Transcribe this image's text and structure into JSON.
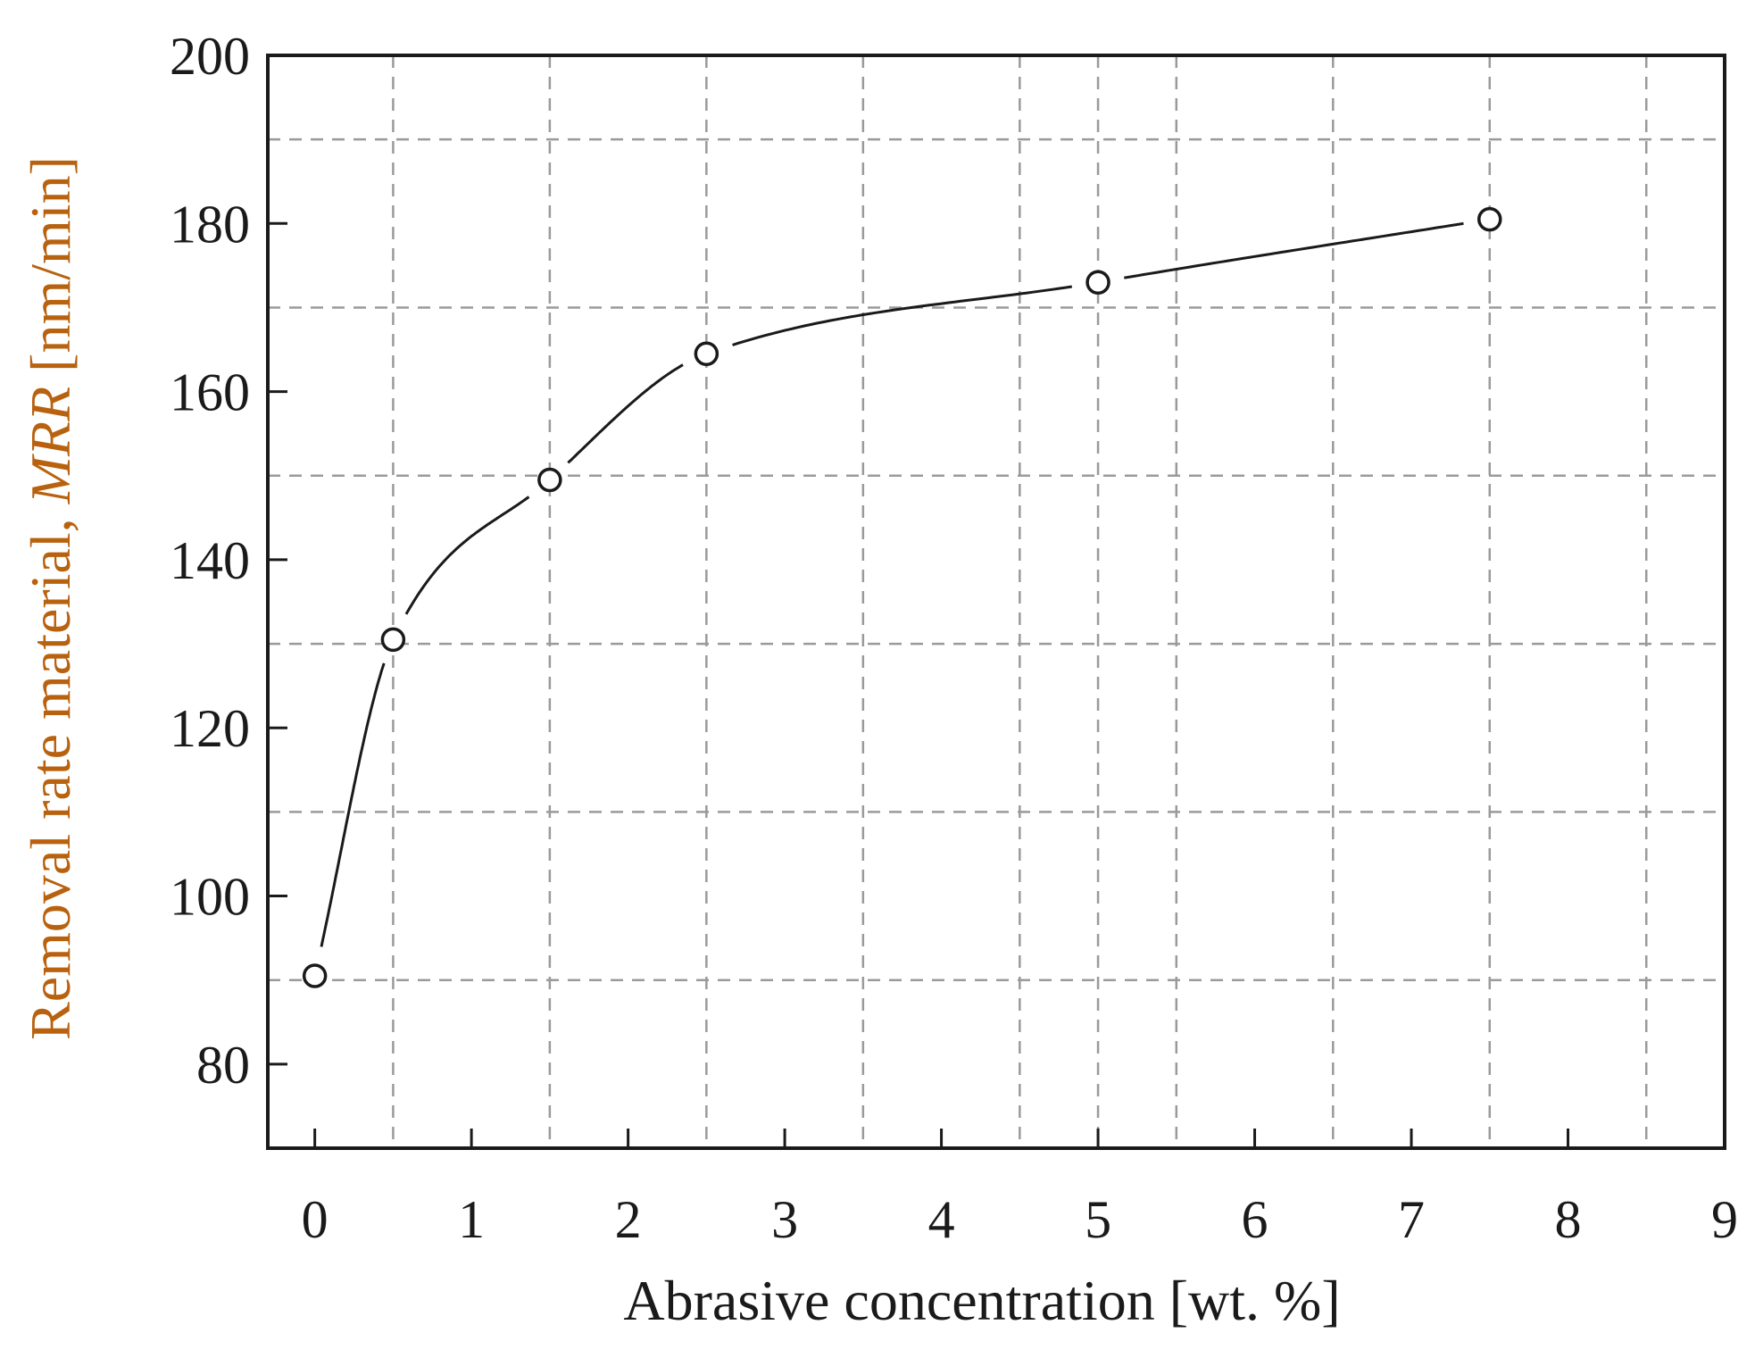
{
  "chart_data": {
    "type": "line",
    "xlabel": "Abrasive concentration [wt. %]",
    "ylabel_parts": {
      "prefix": "Removal rate material, ",
      "italic": "MRR",
      "suffix": " [nm/min]"
    },
    "xlim": [
      -0.3,
      9
    ],
    "ylim": [
      70,
      200
    ],
    "x_ticks": [
      0,
      1,
      2,
      3,
      4,
      5,
      6,
      7,
      8,
      9
    ],
    "y_ticks": [
      80,
      100,
      120,
      140,
      160,
      180,
      200
    ],
    "x_grid": [
      0.5,
      1.5,
      2.5,
      3.5,
      4.5,
      5,
      5.5,
      6.5,
      7.5,
      8.5
    ],
    "y_grid": [
      90,
      110,
      130,
      150,
      170,
      190
    ],
    "series": [
      {
        "x": [
          0,
          0.5,
          1.5,
          2.5,
          5,
          7.5
        ],
        "y": [
          90.5,
          130.5,
          149.5,
          164.5,
          173,
          180.5
        ],
        "marker": "open-circle",
        "line": "smooth-curve"
      }
    ],
    "grid": true,
    "colors": {
      "axis": "#1a1a1a",
      "grid": "#9a9a9a",
      "ylabel": "#b8620f",
      "xlabel": "#1a1a1a"
    }
  }
}
